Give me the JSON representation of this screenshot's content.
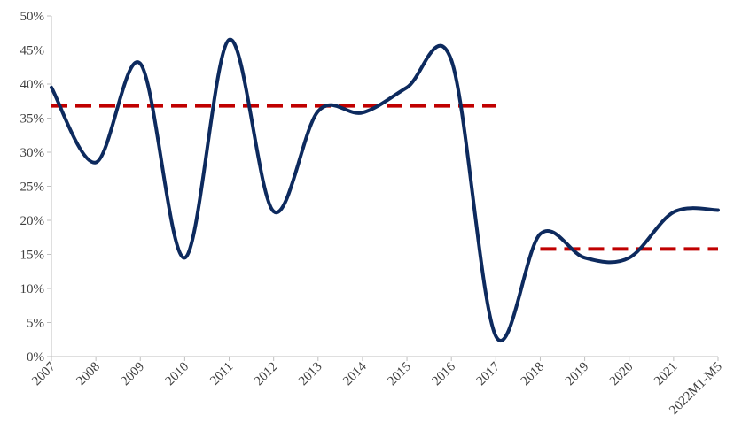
{
  "chart_data": {
    "type": "line",
    "title": "",
    "xlabel": "",
    "ylabel": "",
    "categories": [
      "2007",
      "2008",
      "2009",
      "2010",
      "2011",
      "2012",
      "2013",
      "2014",
      "2015",
      "2016",
      "2017",
      "2018",
      "2019",
      "2020",
      "2021",
      "2022M1-M5"
    ],
    "series": [
      {
        "values": [
          39.5,
          28.5,
          43.0,
          14.5,
          46.5,
          21.3,
          36.0,
          35.8,
          39.5,
          43.5,
          3.0,
          18.0,
          14.5,
          14.5,
          21.2,
          21.5
        ],
        "color": "#0d2a5e",
        "style": "smooth-solid"
      }
    ],
    "reference_lines": [
      {
        "value": 36.8,
        "from_category": "2007",
        "to_category": "2017",
        "color": "#c00000",
        "style": "dashed"
      },
      {
        "value": 15.8,
        "from_category": "2018",
        "to_category": "2022M1-M5",
        "color": "#c00000",
        "style": "dashed"
      }
    ],
    "y_ticks": [
      "0%",
      "5%",
      "10%",
      "15%",
      "20%",
      "25%",
      "30%",
      "35%",
      "40%",
      "45%",
      "50%"
    ],
    "ylim": [
      0,
      50
    ],
    "grid": false,
    "legend": "none"
  }
}
